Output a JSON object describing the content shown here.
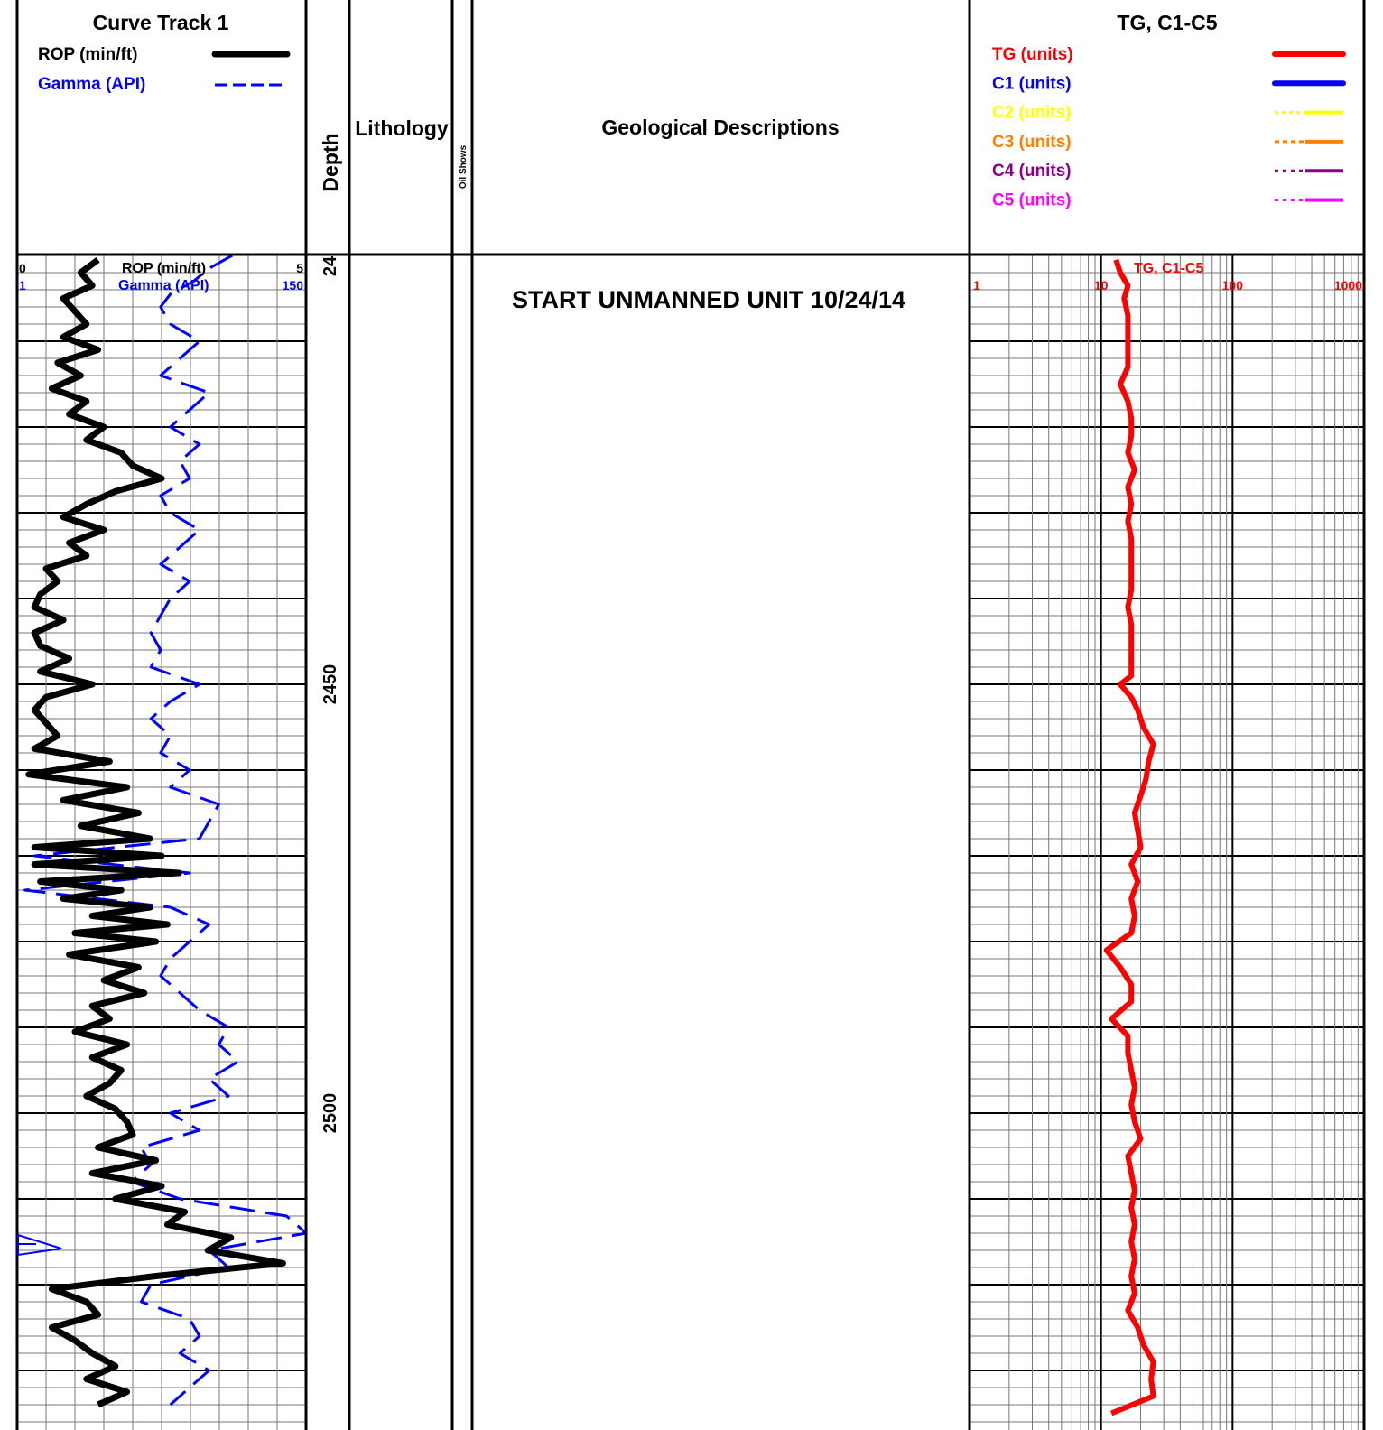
{
  "header": {
    "curve_track_title": "Curve Track 1",
    "rop_label": "ROP (min/ft)",
    "gamma_label": "Gamma (API)",
    "depth_label": "Depth",
    "lithology_label": "Lithology",
    "oil_shows_label": "Oil Shows",
    "geo_label": "Geological Descriptions",
    "gas_title": "TG, C1-C5",
    "gas_legend": [
      {
        "label": "TG (units)",
        "color": "#ff0000"
      },
      {
        "label": "C1 (units)",
        "color": "#0000ff"
      },
      {
        "label": "C2 (units)",
        "color": "#ffff00"
      },
      {
        "label": "C3 (units)",
        "color": "#ff8000"
      },
      {
        "label": "C4 (units)",
        "color": "#8b008b"
      },
      {
        "label": "C5 (units)",
        "color": "#ff00ff"
      }
    ]
  },
  "track1_scale": {
    "rop_min": "0",
    "rop_max": "5",
    "rop_label": "ROP (min/ft)",
    "gamma_min": "1",
    "gamma_max": "150",
    "gamma_label": "Gamma (API)"
  },
  "gas_scale": {
    "label": "TG, C1-C5",
    "ticks": [
      "1",
      "10",
      "100",
      "1000"
    ]
  },
  "description": "START UNMANNED UNIT 10/24/14",
  "depth_labels": [
    {
      "depth": 2400,
      "label": "24"
    },
    {
      "depth": 2450,
      "label": "2450"
    },
    {
      "depth": 2500,
      "label": "2500"
    }
  ],
  "colors": {
    "rop": "#000000",
    "gamma": "#0000ff",
    "tg": "#ff0000",
    "grid": "#888888"
  },
  "chart_data": {
    "type": "line",
    "depth_range": [
      2400,
      2535
    ],
    "rop": {
      "name": "ROP (min/ft)",
      "xlim": [
        0,
        5
      ],
      "depth": [
        2400.5,
        2402,
        2403.5,
        2405,
        2406.5,
        2408,
        2409.5,
        2411,
        2412.5,
        2414,
        2415.5,
        2417,
        2418.5,
        2420,
        2421.5,
        2423,
        2424.5,
        2426,
        2427.5,
        2429,
        2430.5,
        2432,
        2433.5,
        2435,
        2436.5,
        2438,
        2439.5,
        2441,
        2442.5,
        2444,
        2445.5,
        2447,
        2448.5,
        2450,
        2451.5,
        2453,
        2454.5,
        2456,
        2457.5,
        2459,
        2460.5,
        2462,
        2463.5,
        2465,
        2466.5,
        2468,
        2469,
        2470,
        2471,
        2472,
        2473,
        2474,
        2475,
        2476,
        2477,
        2478,
        2479,
        2480,
        2481.5,
        2483,
        2484.5,
        2486,
        2487.5,
        2489,
        2490.5,
        2492,
        2493.5,
        2495,
        2496.5,
        2498,
        2499.5,
        2501,
        2502.5,
        2504,
        2505.5,
        2507,
        2508.5,
        2510,
        2511.5,
        2513,
        2514.5,
        2516,
        2517.5,
        2519,
        2520.5,
        2522,
        2523.5,
        2525,
        2526.5,
        2528,
        2529.5,
        2531,
        2532.5,
        2534
      ],
      "values": [
        1.4,
        1.1,
        1.3,
        0.8,
        1.0,
        1.2,
        0.8,
        1.4,
        0.7,
        1.1,
        0.6,
        1.2,
        0.9,
        1.5,
        1.2,
        1.8,
        2.0,
        2.5,
        1.7,
        1.2,
        0.8,
        1.5,
        0.9,
        1.2,
        0.5,
        0.7,
        0.4,
        0.3,
        0.8,
        0.3,
        0.4,
        0.9,
        0.4,
        1.3,
        0.5,
        0.3,
        0.5,
        0.7,
        0.3,
        1.6,
        0.2,
        1.9,
        0.8,
        2.1,
        1.1,
        2.3,
        0.3,
        2.5,
        0.3,
        2.8,
        0.4,
        1.8,
        0.8,
        2.3,
        1.3,
        2.6,
        1.0,
        2.4,
        0.9,
        2.1,
        1.5,
        2.2,
        1.3,
        1.6,
        1.0,
        1.9,
        1.3,
        1.8,
        1.6,
        1.2,
        1.7,
        1.9,
        2.0,
        1.4,
        2.4,
        1.3,
        2.5,
        1.7,
        2.9,
        2.6,
        3.7,
        3.3,
        4.6,
        2.4,
        0.6,
        1.2,
        1.4,
        0.6,
        1.0,
        1.3,
        1.7,
        1.2,
        1.9,
        1.4
      ]
    },
    "gamma": {
      "name": "Gamma (API)",
      "xlim": [
        1,
        150
      ],
      "depth": [
        2400,
        2401.5,
        2403,
        2404.5,
        2406,
        2408,
        2410,
        2412,
        2414,
        2416,
        2418,
        2420,
        2422,
        2424,
        2426,
        2428,
        2430,
        2432,
        2434,
        2436,
        2438,
        2440,
        2442,
        2444,
        2446,
        2448,
        2450,
        2452,
        2454,
        2456,
        2458,
        2460,
        2462,
        2464,
        2466,
        2468,
        2470,
        2472,
        2474,
        2476,
        2478,
        2480,
        2482,
        2484,
        2486,
        2488,
        2490,
        2492,
        2494,
        2496,
        2498,
        2500,
        2502,
        2504,
        2506,
        2508,
        2510,
        2512,
        2514,
        2516,
        2518,
        2520,
        2522,
        2524,
        2526,
        2528,
        2530,
        2532,
        2534
      ],
      "values": [
        112,
        100,
        92,
        80,
        75,
        80,
        95,
        85,
        75,
        100,
        90,
        80,
        95,
        85,
        90,
        75,
        80,
        95,
        85,
        75,
        90,
        80,
        75,
        70,
        75,
        70,
        95,
        80,
        70,
        80,
        75,
        90,
        80,
        105,
        100,
        95,
        10,
        90,
        5,
        80,
        100,
        90,
        80,
        75,
        85,
        95,
        110,
        105,
        115,
        100,
        110,
        80,
        95,
        65,
        70,
        60,
        85,
        140,
        150,
        100,
        110,
        70,
        65,
        90,
        95,
        85,
        100,
        90,
        80
      ]
    },
    "tg": {
      "name": "TG (units)",
      "xlim": [
        1,
        1000
      ],
      "log": true,
      "depth": [
        2400.5,
        2402,
        2403.5,
        2405,
        2407,
        2409,
        2411,
        2413,
        2415,
        2417,
        2419,
        2421,
        2423,
        2425,
        2427,
        2429,
        2431,
        2433,
        2435,
        2437,
        2439,
        2441,
        2443,
        2445,
        2447,
        2449,
        2450,
        2451.5,
        2453,
        2455,
        2457,
        2459,
        2461,
        2463,
        2465,
        2467,
        2469,
        2471,
        2473,
        2475,
        2477,
        2479,
        2481,
        2483,
        2485,
        2487,
        2489,
        2491,
        2493,
        2495,
        2497,
        2499,
        2501,
        2503,
        2505,
        2507,
        2509,
        2511,
        2513,
        2515,
        2517,
        2519,
        2521,
        2523,
        2525,
        2527,
        2529,
        2531,
        2533,
        2535
      ],
      "values": [
        13,
        14,
        16,
        15,
        16,
        16,
        16,
        16,
        14,
        16,
        17,
        17,
        16,
        18,
        16,
        17,
        16,
        17,
        17,
        17,
        17,
        16,
        17,
        17,
        17,
        17,
        14,
        17,
        19,
        21,
        25,
        23,
        22,
        20,
        18,
        19,
        20,
        17,
        19,
        17,
        18,
        17,
        11,
        14,
        17,
        17,
        12,
        16,
        16,
        17,
        18,
        17,
        18,
        20,
        16,
        17,
        18,
        17,
        18,
        17,
        18,
        17,
        18,
        16,
        19,
        21,
        25,
        24,
        25,
        12
      ]
    }
  }
}
